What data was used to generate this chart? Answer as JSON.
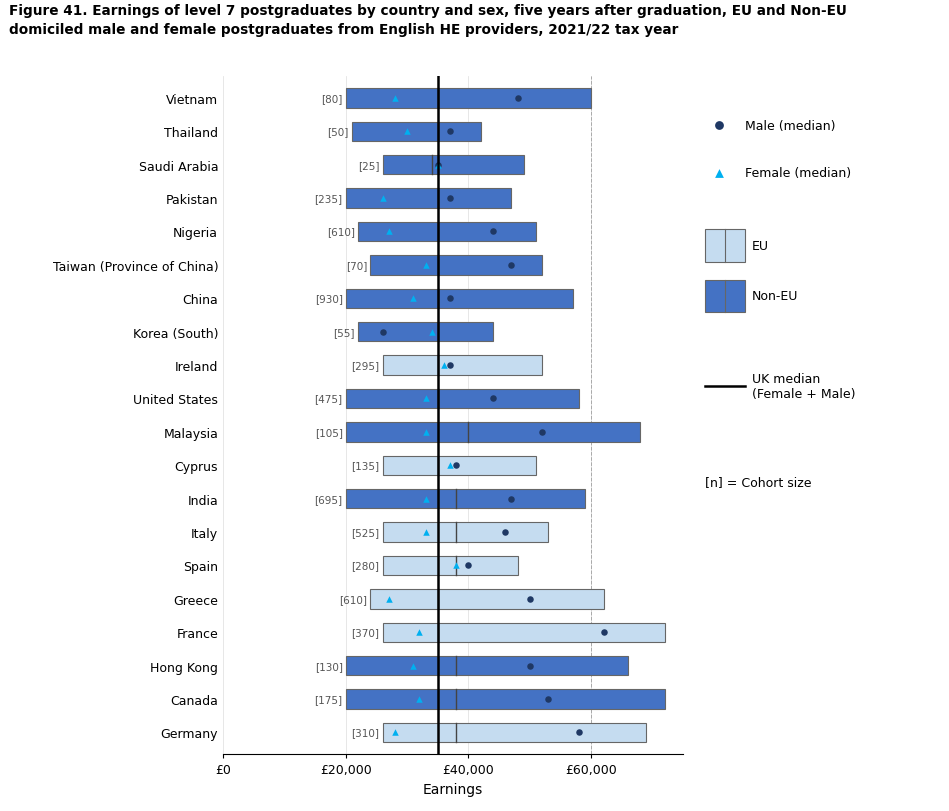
{
  "title_line1": "Figure 41. Earnings of level 7 postgraduates by country and sex, five years after graduation, EU and Non-EU",
  "title_line2": "domiciled male and female postgraduates from English HE providers, 2021/22 tax year",
  "xlabel": "Earnings",
  "uk_median": 35000,
  "countries": [
    "Vietnam",
    "Thailand",
    "Saudi Arabia",
    "Pakistan",
    "Nigeria",
    "Taiwan (Province of China)",
    "China",
    "Korea (South)",
    "Ireland",
    "United States",
    "Malaysia",
    "Cyprus",
    "India",
    "Italy",
    "Spain",
    "Greece",
    "France",
    "Hong Kong",
    "Canada",
    "Germany"
  ],
  "cohort": [
    80,
    50,
    25,
    235,
    610,
    70,
    930,
    55,
    295,
    475,
    105,
    135,
    695,
    525,
    280,
    610,
    370,
    130,
    175,
    310
  ],
  "eu": [
    false,
    false,
    false,
    false,
    false,
    false,
    false,
    false,
    true,
    false,
    false,
    true,
    false,
    true,
    true,
    true,
    true,
    false,
    false,
    true
  ],
  "bar_q1": [
    20000,
    21000,
    26000,
    20000,
    22000,
    24000,
    20000,
    22000,
    26000,
    20000,
    20000,
    26000,
    20000,
    26000,
    26000,
    24000,
    26000,
    20000,
    20000,
    26000
  ],
  "bar_q3": [
    60000,
    42000,
    49000,
    47000,
    51000,
    52000,
    57000,
    44000,
    52000,
    58000,
    68000,
    51000,
    59000,
    53000,
    48000,
    62000,
    72000,
    66000,
    72000,
    69000
  ],
  "bar_median_line": [
    35000,
    35000,
    34000,
    35000,
    35000,
    35000,
    35000,
    35000,
    35000,
    35000,
    40000,
    35000,
    38000,
    38000,
    38000,
    35000,
    35000,
    38000,
    38000,
    38000
  ],
  "male_median": [
    48000,
    37000,
    35000,
    37000,
    44000,
    47000,
    37000,
    26000,
    37000,
    44000,
    52000,
    38000,
    47000,
    46000,
    40000,
    50000,
    62000,
    50000,
    53000,
    58000
  ],
  "female_median": [
    28000,
    30000,
    35000,
    26000,
    27000,
    33000,
    31000,
    34000,
    36000,
    33000,
    33000,
    37000,
    33000,
    33000,
    38000,
    27000,
    32000,
    31000,
    32000,
    28000
  ],
  "non_eu_color": "#4472C4",
  "eu_color": "#C5DCF0",
  "male_color": "#1F3864",
  "female_color": "#00B0F0",
  "bar_height": 0.58,
  "xlim_left": 0,
  "xlim_right": 75000,
  "xticks": [
    0,
    20000,
    40000,
    60000
  ],
  "dashed_vline": 60000
}
